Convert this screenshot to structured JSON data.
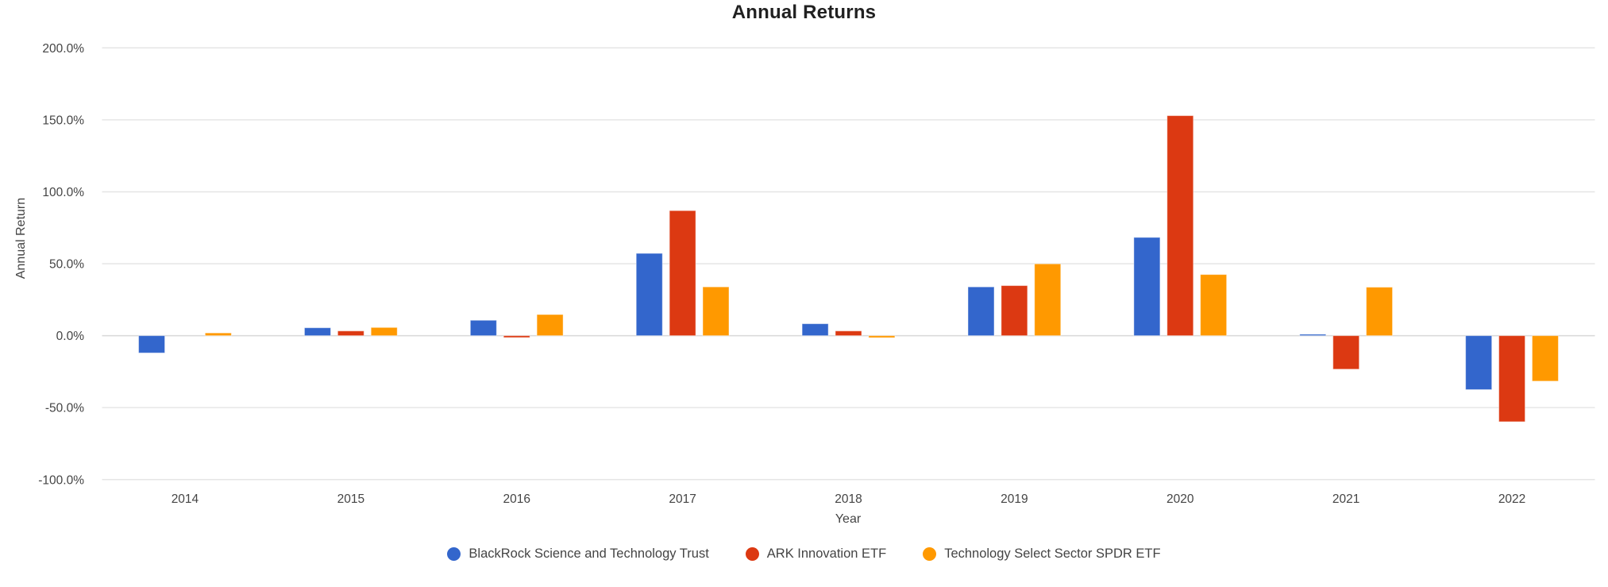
{
  "chart_data": {
    "type": "bar",
    "title": "Annual Returns",
    "xlabel": "Year",
    "ylabel": "Annual Return",
    "categories": [
      "2014",
      "2015",
      "2016",
      "2017",
      "2018",
      "2019",
      "2020",
      "2021",
      "2022"
    ],
    "series": [
      {
        "name": "BlackRock Science and Technology Trust",
        "color": "#3366CC",
        "values": [
          -12.0,
          5.5,
          10.7,
          57.2,
          8.3,
          33.9,
          68.3,
          1.0,
          -37.5
        ]
      },
      {
        "name": "ARK Innovation ETF",
        "color": "#DC3912",
        "values": [
          0.0,
          3.3,
          -1.3,
          86.9,
          3.3,
          34.8,
          152.9,
          -23.3,
          -59.8
        ]
      },
      {
        "name": "Technology Select Sector SPDR ETF",
        "color": "#FF9900",
        "values": [
          1.9,
          5.7,
          14.7,
          33.9,
          -1.4,
          49.9,
          42.5,
          33.7,
          -31.6
        ]
      }
    ],
    "y_ticks": [
      200,
      150,
      100,
      50,
      0,
      -50,
      -100
    ],
    "y_tick_format": "percent_one_decimal",
    "ylim": [
      -100,
      200
    ],
    "grid": "horizontal",
    "legend_position": "bottom",
    "colors": {
      "gridline": "#e6e6e6",
      "zero_line": "#d9d9d9",
      "tick_text": "#444444",
      "title_text": "#212121"
    }
  }
}
